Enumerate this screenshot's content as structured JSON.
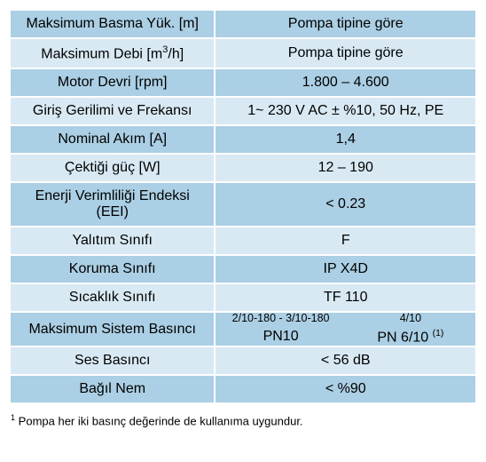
{
  "table": {
    "colors": {
      "row_odd": "#abcfe4",
      "row_even": "#d8e9f3",
      "border": "#ffffff",
      "text": "#000000",
      "background": "#ffffff"
    },
    "column_widths_pct": [
      44,
      56
    ],
    "rows": [
      {
        "label_html": "Maksimum Basma Yük. [m]",
        "value": "Pompa tipine göre"
      },
      {
        "label_html": "Maksimum Debi [m<sup>3</sup>/h]",
        "value": "Pompa tipine göre"
      },
      {
        "label_html": "Motor Devri [rpm]",
        "value": "1.800 – 4.600"
      },
      {
        "label_html": "Giriş Gerilimi ve Frekansı",
        "value": "1~ 230 V AC ± %10, 50 Hz, PE"
      },
      {
        "label_html": "Nominal Akım [A]",
        "value": "1,4"
      },
      {
        "label_html": "Çektiği güç [W]",
        "value": "12 – 190"
      },
      {
        "label_html": "Enerji Verimliliği Endeksi<br>(EEI)",
        "value": "< 0.23"
      },
      {
        "label_html": "Yalıtım Sınıfı",
        "value": "F"
      },
      {
        "label_html": "Koruma Sınıfı",
        "value": "IP X4D"
      },
      {
        "label_html": "Sıcaklık Sınıfı",
        "value": "TF 110"
      },
      {
        "label_html": "Maksimum Sistem Basıncı",
        "dual": {
          "left": {
            "top": "2/10-180 - 3/10-180",
            "bottom_html": "PN10"
          },
          "right": {
            "top": "4/10",
            "bottom_html": "PN 6/10 <span class=\"sup-note\">(1)</span>"
          }
        }
      },
      {
        "label_html": "Ses Basıncı",
        "value": "< 56 dB"
      },
      {
        "label_html": "Bağıl Nem",
        "value": "< %90"
      }
    ],
    "footnote_html": "<sup>1</sup> Pompa her iki basınç değerinde de kullanıma uygundur."
  }
}
